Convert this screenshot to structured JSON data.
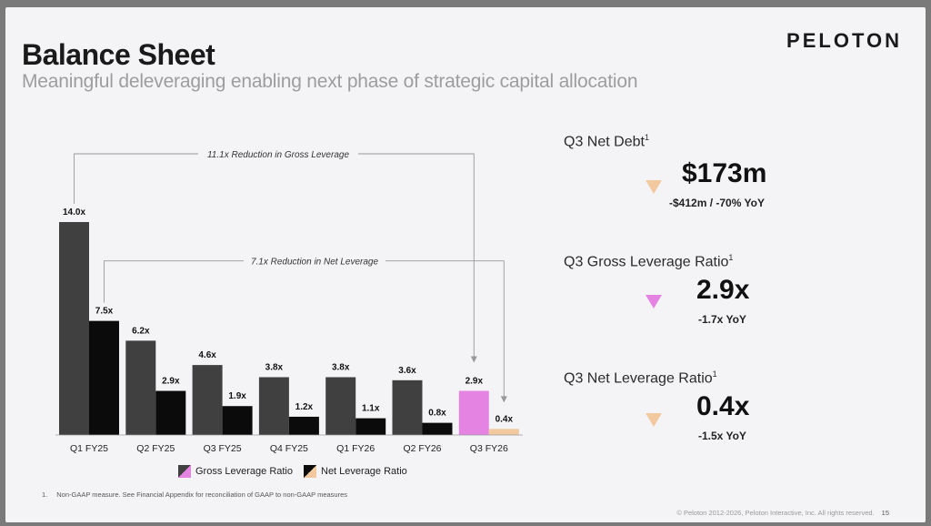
{
  "header": {
    "title": "Balance Sheet",
    "subtitle": "Meaningful deleveraging enabling next phase of strategic capital allocation",
    "brand": "PELOTON"
  },
  "chart_data": {
    "type": "bar",
    "categories": [
      "Q1 FY25",
      "Q2 FY25",
      "Q3 FY25",
      "Q4 FY25",
      "Q1 FY26",
      "Q2 FY26",
      "Q3 FY26"
    ],
    "series": [
      {
        "name": "Gross Leverage Ratio",
        "values": [
          14.0,
          6.2,
          4.6,
          3.8,
          3.8,
          3.6,
          2.9
        ],
        "labels": [
          "14.0x",
          "6.2x",
          "4.6x",
          "3.8x",
          "3.8x",
          "3.6x",
          "2.9x"
        ],
        "color": "#404040",
        "highlight_color": "#e583e3"
      },
      {
        "name": "Net Leverage Ratio",
        "values": [
          7.5,
          2.9,
          1.9,
          1.2,
          1.1,
          0.8,
          0.4
        ],
        "labels": [
          "7.5x",
          "2.9x",
          "1.9x",
          "1.2x",
          "1.1x",
          "0.8x",
          "0.4x"
        ],
        "color": "#0b0b0b",
        "highlight_color": "#f2c99f"
      }
    ],
    "annotations": [
      "11.1x Reduction in Gross Leverage",
      "7.1x Reduction in Net Leverage"
    ],
    "legend_position": "bottom",
    "grid": false
  },
  "kpis": [
    {
      "label": "Q3 Net Debt",
      "sup": "1",
      "value": "$173m",
      "change": "-$412m / -70% YoY",
      "arrow_color": "#f2c99f"
    },
    {
      "label": "Q3 Gross Leverage Ratio",
      "sup": "1",
      "value": "2.9x",
      "change": "-1.7x YoY",
      "arrow_color": "#e583e3"
    },
    {
      "label": "Q3 Net Leverage Ratio",
      "sup": "1",
      "value": "0.4x",
      "change": "-1.5x YoY",
      "arrow_color": "#f2c99f"
    }
  ],
  "footer": {
    "footnote_num": "1.",
    "footnote": "Non-GAAP measure. See Financial Appendix for reconciliation of GAAP to non-GAAP measures",
    "copyright": "© Peloton 2012-2026, Peloton Interactive, Inc. All rights reserved.",
    "page": "15"
  }
}
